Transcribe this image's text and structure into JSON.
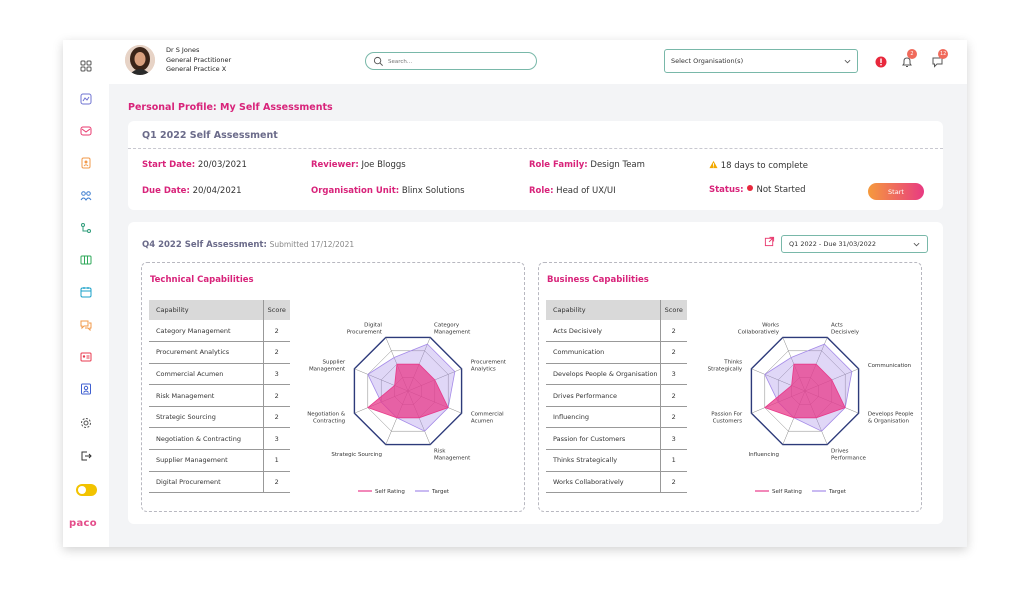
{
  "user": {
    "name": "Dr S Jones",
    "role": "General Practitioner",
    "practice": "General Practice X"
  },
  "search": {
    "placeholder": "Search..."
  },
  "org_select": {
    "value": "Select Organisation(s)"
  },
  "notifications": {
    "alert_count": "1",
    "bell_count": "2",
    "chat_count": "12"
  },
  "sidebar": {
    "icons": [
      "grid-icon",
      "chart-icon",
      "mail-icon",
      "contacts-icon",
      "team-icon",
      "route-icon",
      "table-icon",
      "calendar-icon",
      "chat-icon",
      "id-card-icon",
      "profile-icon",
      "settings-icon",
      "logout-icon"
    ],
    "logo": "paco"
  },
  "page": {
    "title": "Personal Profile: My Self Assessments"
  },
  "current": {
    "title": "Q1 2022 Self Assessment",
    "start_label": "Start Date:",
    "start_value": "20/03/2021",
    "due_label": "Due Date:",
    "due_value": "20/04/2021",
    "reviewer_label": "Reviewer:",
    "reviewer_value": "Joe Bloggs",
    "org_label": "Organisation Unit:",
    "org_value": "Blinx Solutions",
    "family_label": "Role Family:",
    "family_value": "Design Team",
    "role_label": "Role:",
    "role_value": "Head of UX/UI",
    "days_text": "18 days to complete",
    "status_label": "Status:",
    "status_value": "Not Started",
    "start_button": "Start"
  },
  "previous": {
    "title": "Q4 2022 Self Assessment:",
    "submitted": "Submitted 17/12/2021",
    "period_select": "Q1 2022 - Due 31/03/2022"
  },
  "technical": {
    "title": "Technical Capabilities",
    "col_capability": "Capability",
    "col_score": "Score",
    "rows": [
      {
        "capability": "Category Management",
        "score": "2"
      },
      {
        "capability": "Procurement Analytics",
        "score": "2"
      },
      {
        "capability": "Commercial Acumen",
        "score": "3"
      },
      {
        "capability": "Risk Management",
        "score": "2"
      },
      {
        "capability": "Strategic Sourcing",
        "score": "2"
      },
      {
        "capability": "Negotiation & Contracting",
        "score": "3"
      },
      {
        "capability": "Supplier Management",
        "score": "1"
      },
      {
        "capability": "Digital Procurement",
        "score": "2"
      }
    ]
  },
  "business": {
    "title": "Business Capabilities",
    "col_capability": "Capability",
    "col_score": "Score",
    "rows": [
      {
        "capability": "Acts Decisively",
        "score": "2"
      },
      {
        "capability": "Communication",
        "score": "2"
      },
      {
        "capability": "Develops People & Organisation",
        "score": "3"
      },
      {
        "capability": "Drives Performance",
        "score": "2"
      },
      {
        "capability": "Influencing",
        "score": "2"
      },
      {
        "capability": "Passion for Customers",
        "score": "3"
      },
      {
        "capability": "Thinks Strategically",
        "score": "1"
      },
      {
        "capability": "Works Collaboratively",
        "score": "2"
      }
    ]
  },
  "chart_data": [
    {
      "type": "radar",
      "title": "Technical Capabilities",
      "categories": [
        "Category Management",
        "Procurement Analytics",
        "Commercial Acumen",
        "Risk Management",
        "Strategic Sourcing",
        "Negotiation & Contracting",
        "Supplier Management",
        "Digital Procurement"
      ],
      "axis_labels": [
        [
          "Category",
          "Management"
        ],
        [
          "Procurement",
          "Analytics"
        ],
        [
          "Commercial",
          "Acumen"
        ],
        [
          "Risk",
          "Management"
        ],
        [
          "Strategic Sourcing"
        ],
        [
          "Negotiation &",
          "Contracting"
        ],
        [
          "Supplier",
          "Management"
        ],
        [
          "Digital",
          "Procurement"
        ]
      ],
      "ylim": [
        0,
        4
      ],
      "series": [
        {
          "name": "Self Rating",
          "values": [
            2,
            2,
            3,
            2,
            2,
            3,
            1,
            2
          ],
          "color": "#e83a8a"
        },
        {
          "name": "Target",
          "values": [
            3.5,
            3.5,
            3,
            3,
            2,
            2,
            3,
            2.5
          ],
          "color": "#a58be8"
        }
      ],
      "legend": "bottom"
    },
    {
      "type": "radar",
      "title": "Business Capabilities",
      "categories": [
        "Acts Decisively",
        "Communication",
        "Develops People & Organisation",
        "Drives Performance",
        "Influencing",
        "Passion for Customers",
        "Thinks Strategically",
        "Works Collaboratively"
      ],
      "axis_labels": [
        [
          "Acts",
          "Decisively"
        ],
        [
          "Communication"
        ],
        [
          "Develops People",
          "& Organisation"
        ],
        [
          "Drives",
          "Performance"
        ],
        [
          "Influencing"
        ],
        [
          "Passion For",
          "Customers"
        ],
        [
          "Thinks",
          "Strategically"
        ],
        [
          "Works",
          "Collaboratively"
        ]
      ],
      "ylim": [
        0,
        4
      ],
      "series": [
        {
          "name": "Self Rating",
          "values": [
            2,
            2,
            3,
            2,
            2,
            3,
            1,
            2
          ],
          "color": "#e83a8a"
        },
        {
          "name": "Target",
          "values": [
            3.5,
            3.5,
            3,
            3,
            2,
            2,
            3,
            2.5
          ],
          "color": "#a58be8"
        }
      ],
      "legend": "bottom"
    }
  ]
}
